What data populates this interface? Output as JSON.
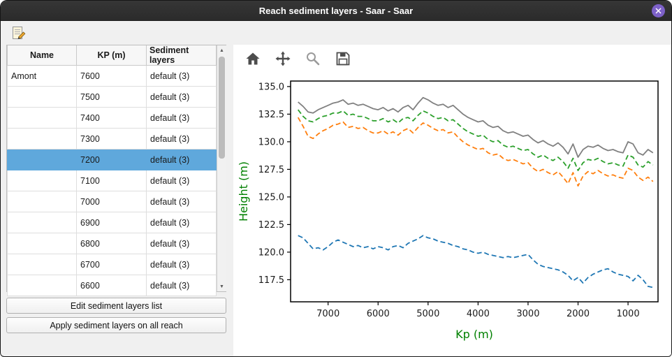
{
  "window": {
    "title": "Reach sediment layers - Saar - Saar"
  },
  "colors": {
    "selection": "#5fa8dc",
    "close_button": "#7d61c8",
    "titlebar": "#2e2e2e",
    "axis_label_green": "#008000"
  },
  "icons": {
    "toolbar_edit": "edit-note-icon",
    "close": "close-icon",
    "mpl": [
      "home-icon",
      "pan-icon",
      "zoom-icon",
      "save-icon"
    ],
    "scroll_up": "▲",
    "scroll_down": "▼"
  },
  "table": {
    "columns": [
      "Name",
      "KP (m)",
      "Sediment layers"
    ],
    "rows": [
      {
        "name": "Amont",
        "kp": "7600",
        "layers": "default (3)",
        "selected": false
      },
      {
        "name": "",
        "kp": "7500",
        "layers": "default (3)",
        "selected": false
      },
      {
        "name": "",
        "kp": "7400",
        "layers": "default (3)",
        "selected": false
      },
      {
        "name": "",
        "kp": "7300",
        "layers": "default (3)",
        "selected": false
      },
      {
        "name": "",
        "kp": "7200",
        "layers": "default (3)",
        "selected": true
      },
      {
        "name": "",
        "kp": "7100",
        "layers": "default (3)",
        "selected": false
      },
      {
        "name": "",
        "kp": "7000",
        "layers": "default (3)",
        "selected": false
      },
      {
        "name": "",
        "kp": "6900",
        "layers": "default (3)",
        "selected": false
      },
      {
        "name": "",
        "kp": "6800",
        "layers": "default (3)",
        "selected": false
      },
      {
        "name": "",
        "kp": "6700",
        "layers": "default (3)",
        "selected": false
      },
      {
        "name": "",
        "kp": "6600",
        "layers": "default (3)",
        "selected": false
      }
    ]
  },
  "buttons": {
    "edit": "Edit sediment layers list",
    "apply": "Apply sediment layers on all reach"
  },
  "chart_data": {
    "type": "line",
    "title": "",
    "xlabel": "Kp (m)",
    "ylabel": "Height (m)",
    "label_color": "#008000",
    "x_inverted": true,
    "xlim": [
      7750,
      400
    ],
    "ylim": [
      115.5,
      135.5
    ],
    "x_ticks": [
      7000,
      6000,
      5000,
      4000,
      3000,
      2000,
      1000
    ],
    "y_ticks": [
      117.5,
      120.0,
      122.5,
      125.0,
      127.5,
      130.0,
      132.5,
      135.0
    ],
    "grid": false,
    "legend": "none",
    "x": [
      7600,
      7500,
      7400,
      7300,
      7200,
      7100,
      7000,
      6900,
      6800,
      6700,
      6600,
      6500,
      6400,
      6300,
      6200,
      6100,
      6000,
      5900,
      5800,
      5700,
      5600,
      5500,
      5400,
      5300,
      5200,
      5100,
      5000,
      4900,
      4800,
      4700,
      4600,
      4500,
      4400,
      4300,
      4200,
      4100,
      4000,
      3900,
      3800,
      3700,
      3600,
      3500,
      3400,
      3300,
      3200,
      3100,
      3000,
      2900,
      2800,
      2700,
      2600,
      2500,
      2400,
      2300,
      2200,
      2100,
      2000,
      1900,
      1800,
      1700,
      1600,
      1500,
      1400,
      1300,
      1200,
      1100,
      1000,
      900,
      800,
      700,
      600,
      500
    ],
    "series": [
      {
        "name": "top-gray",
        "color": "#808080",
        "dash": "solid",
        "values": [
          133.6,
          133.2,
          132.7,
          132.6,
          132.9,
          133.1,
          133.3,
          133.5,
          133.6,
          133.8,
          133.4,
          133.5,
          133.3,
          133.4,
          133.2,
          133.0,
          132.9,
          133.1,
          132.8,
          133.0,
          132.7,
          133.1,
          133.3,
          132.9,
          133.5,
          134.0,
          133.8,
          133.5,
          133.3,
          133.4,
          133.1,
          133.3,
          132.9,
          132.5,
          132.2,
          132.0,
          131.8,
          131.9,
          131.5,
          131.3,
          131.4,
          131.0,
          130.8,
          130.9,
          130.7,
          130.5,
          130.6,
          130.2,
          129.9,
          130.1,
          129.8,
          129.6,
          129.9,
          129.5,
          128.9,
          129.8,
          128.6,
          129.3,
          129.6,
          129.5,
          129.7,
          129.4,
          129.2,
          129.3,
          129.1,
          129.0,
          130.0,
          129.8,
          129.0,
          128.8,
          129.3,
          129.0
        ]
      },
      {
        "name": "layer-green",
        "color": "#2ca02c",
        "dash": "dashed",
        "values": [
          132.9,
          132.3,
          131.9,
          131.8,
          132.1,
          132.3,
          132.4,
          132.6,
          132.6,
          132.8,
          132.4,
          132.5,
          132.3,
          132.3,
          132.1,
          131.9,
          131.9,
          132.1,
          131.8,
          132.0,
          131.7,
          132.1,
          132.2,
          131.9,
          132.4,
          132.8,
          132.6,
          132.3,
          132.1,
          132.2,
          131.9,
          132.0,
          131.6,
          131.2,
          130.9,
          130.7,
          130.5,
          130.6,
          130.2,
          130.0,
          130.1,
          129.7,
          129.5,
          129.6,
          129.4,
          129.2,
          129.3,
          128.9,
          128.6,
          128.8,
          128.5,
          128.3,
          128.6,
          128.2,
          127.6,
          128.5,
          127.4,
          128.1,
          128.4,
          128.3,
          128.5,
          128.2,
          128.0,
          128.1,
          127.9,
          127.8,
          128.8,
          128.6,
          127.9,
          127.7,
          128.2,
          127.9
        ]
      },
      {
        "name": "layer-orange",
        "color": "#ff7f0e",
        "dash": "dashed",
        "values": [
          132.2,
          131.4,
          130.5,
          130.3,
          130.7,
          131.0,
          131.2,
          131.5,
          131.6,
          131.8,
          131.3,
          131.4,
          131.2,
          131.3,
          131.0,
          130.8,
          130.8,
          131.0,
          130.7,
          130.9,
          130.6,
          131.0,
          131.2,
          130.8,
          131.3,
          131.7,
          131.5,
          131.2,
          131.0,
          131.1,
          130.8,
          130.9,
          130.4,
          130.0,
          129.7,
          129.5,
          129.3,
          129.4,
          129.0,
          128.8,
          128.9,
          128.5,
          128.3,
          128.4,
          128.2,
          128.0,
          128.1,
          127.6,
          127.3,
          127.5,
          127.2,
          127.0,
          127.3,
          126.8,
          126.2,
          127.2,
          126.0,
          126.9,
          127.3,
          127.1,
          127.4,
          127.1,
          126.9,
          127.0,
          126.8,
          126.7,
          127.6,
          127.4,
          126.8,
          126.5,
          126.8,
          126.4
        ]
      },
      {
        "name": "bottom-blue",
        "color": "#1f77b4",
        "dash": "dashed",
        "values": [
          121.5,
          121.3,
          120.8,
          120.3,
          120.4,
          120.2,
          120.5,
          120.9,
          121.1,
          120.9,
          120.7,
          120.5,
          120.6,
          120.4,
          120.5,
          120.3,
          120.5,
          120.4,
          120.2,
          120.5,
          120.6,
          120.4,
          120.8,
          121.0,
          121.2,
          121.5,
          121.3,
          121.2,
          121.0,
          120.9,
          120.8,
          120.6,
          120.5,
          120.3,
          120.2,
          120.0,
          119.9,
          120.0,
          119.8,
          119.7,
          119.6,
          119.5,
          119.6,
          119.5,
          119.6,
          119.7,
          119.8,
          119.3,
          118.9,
          118.7,
          118.6,
          118.5,
          118.4,
          118.2,
          117.9,
          117.4,
          117.7,
          117.2,
          117.7,
          118.0,
          118.2,
          118.4,
          118.5,
          118.2,
          118.0,
          117.9,
          117.8,
          117.4,
          117.9,
          117.5,
          116.9,
          116.8
        ]
      }
    ]
  }
}
